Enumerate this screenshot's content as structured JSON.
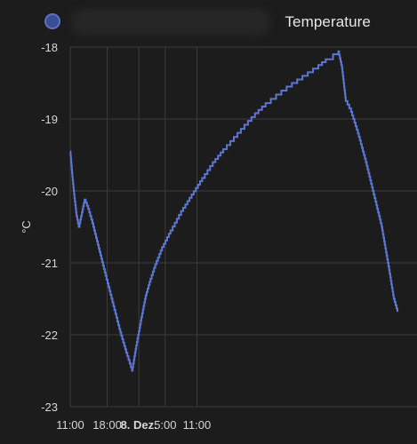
{
  "header": {
    "title": "Temperature",
    "series_color": "#5b77d3"
  },
  "chart_data": {
    "type": "line",
    "series": [
      {
        "color": "#5b77d3",
        "points": [
          [
            -13,
            -19.45
          ],
          [
            -12.6,
            -19.8
          ],
          [
            -12.2,
            -20.1
          ],
          [
            -11.8,
            -20.35
          ],
          [
            -11.4,
            -20.5
          ],
          [
            -10.8,
            -20.3
          ],
          [
            -10.3,
            -20.12
          ],
          [
            -9.6,
            -20.25
          ],
          [
            -8.8,
            -20.45
          ],
          [
            -7.6,
            -20.8
          ],
          [
            -6.3,
            -21.18
          ],
          [
            -5.0,
            -21.55
          ],
          [
            -3.7,
            -21.92
          ],
          [
            -2.4,
            -22.25
          ],
          [
            -1.3,
            -22.5
          ],
          [
            -0.5,
            -22.15
          ],
          [
            0.5,
            -21.75
          ],
          [
            1.3,
            -21.45
          ],
          [
            2.2,
            -21.22
          ],
          [
            3.1,
            -21.02
          ],
          [
            4.4,
            -20.78
          ],
          [
            6.0,
            -20.55
          ],
          [
            8.0,
            -20.28
          ],
          [
            10.0,
            -20.05
          ],
          [
            12.0,
            -19.82
          ],
          [
            14.0,
            -19.6
          ],
          [
            16.0,
            -19.42
          ],
          [
            18.0,
            -19.25
          ],
          [
            20.0,
            -19.08
          ],
          [
            22.0,
            -18.92
          ],
          [
            24.0,
            -18.78
          ],
          [
            26.0,
            -18.66
          ],
          [
            28.0,
            -18.55
          ],
          [
            30.0,
            -18.45
          ],
          [
            32.0,
            -18.35
          ],
          [
            34.0,
            -18.25
          ],
          [
            35.4,
            -18.17
          ],
          [
            36.8,
            -18.1
          ],
          [
            37.8,
            -18.06
          ],
          [
            38.5,
            -18.3
          ],
          [
            39.2,
            -18.75
          ],
          [
            40.2,
            -18.9
          ],
          [
            41.5,
            -19.2
          ],
          [
            43.0,
            -19.6
          ],
          [
            44.5,
            -20.05
          ],
          [
            46.0,
            -20.5
          ],
          [
            47.3,
            -21.05
          ],
          [
            48.3,
            -21.5
          ],
          [
            49.0,
            -21.68
          ]
        ]
      }
    ],
    "y_axis": {
      "label": "°C",
      "range": [
        -23,
        -18
      ],
      "ticks": [
        -18,
        -19,
        -20,
        -21,
        -22,
        -23
      ],
      "tick_labels": [
        "-18",
        "-19",
        "-20",
        "-21",
        "-22",
        "-23"
      ]
    },
    "x_axis": {
      "unit": "hours",
      "range": [
        -13,
        49.5
      ],
      "ticks": [
        -13,
        -6,
        0,
        5,
        11,
        24,
        31
      ],
      "tick_labels": [
        "11:00",
        "18:00",
        "8. Dez.",
        "5:00",
        "11:00"
      ],
      "tick_label_values": [
        -13,
        -6,
        0,
        5,
        11
      ],
      "bold_labels": [
        "8. Dez."
      ]
    },
    "grid": true
  }
}
